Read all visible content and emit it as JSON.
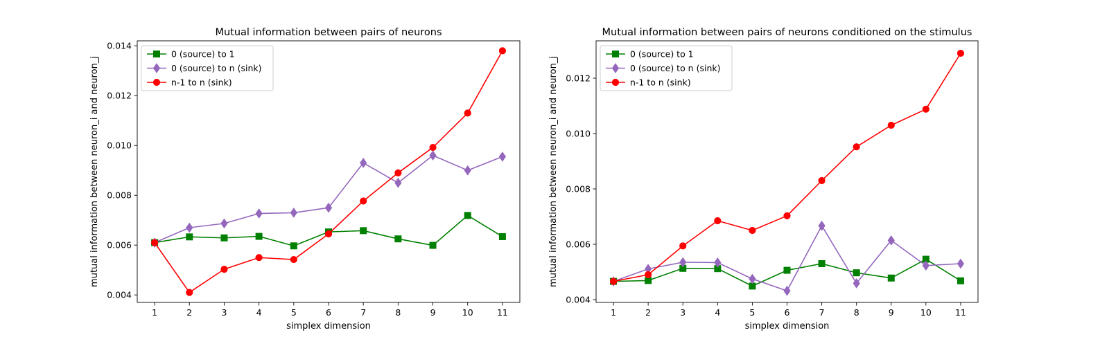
{
  "chart_data": [
    {
      "type": "line",
      "title": "Mutual information between pairs of neurons",
      "xlabel": "simplex dimension",
      "ylabel": "mutual information between neuron_i and neuron_j",
      "x": [
        1,
        2,
        3,
        4,
        5,
        6,
        7,
        8,
        9,
        10,
        11
      ],
      "xlim": [
        0.5,
        11.5
      ],
      "ylim": [
        0.0037,
        0.0142
      ],
      "yticks": [
        0.004,
        0.006,
        0.008,
        0.01,
        0.012,
        0.014
      ],
      "ytick_labels": [
        "0.004",
        "0.006",
        "0.008",
        "0.010",
        "0.012",
        "0.014"
      ],
      "grid": false,
      "legend_position": "top-left",
      "series": [
        {
          "name": "0 (source) to 1",
          "color": "#008000",
          "marker": "square",
          "values": [
            0.0061,
            0.00633,
            0.00629,
            0.00635,
            0.00597,
            0.00653,
            0.00658,
            0.00625,
            0.00599,
            0.00719,
            0.00634
          ]
        },
        {
          "name": "0 (source) to n (sink)",
          "color": "#9467bd",
          "marker": "diamond",
          "values": [
            0.0061,
            0.0067,
            0.00687,
            0.00727,
            0.0073,
            0.0075,
            0.0093,
            0.0085,
            0.0096,
            0.009,
            0.00955
          ]
        },
        {
          "name": "n-1 to n (sink)",
          "color": "#ff0000",
          "marker": "circle",
          "values": [
            0.0061,
            0.0041,
            0.00503,
            0.0055,
            0.00542,
            0.00645,
            0.00777,
            0.0089,
            0.00992,
            0.0113,
            0.0138
          ]
        }
      ]
    },
    {
      "type": "line",
      "title": "Mutual information between pairs of neurons conditioned on the stimulus",
      "xlabel": "simplex dimension",
      "ylabel": "mutual information between neuron_i and neuron_j",
      "x": [
        1,
        2,
        3,
        4,
        5,
        6,
        7,
        8,
        9,
        10,
        11
      ],
      "xlim": [
        0.5,
        11.5
      ],
      "ylim": [
        0.0039,
        0.01335
      ],
      "yticks": [
        0.004,
        0.006,
        0.008,
        0.01,
        0.012
      ],
      "ytick_labels": [
        "0.004",
        "0.006",
        "0.008",
        "0.010",
        "0.012"
      ],
      "grid": false,
      "legend_position": "top-left",
      "series": [
        {
          "name": "0 (source) to 1",
          "color": "#008000",
          "marker": "square",
          "values": [
            0.00466,
            0.00469,
            0.00513,
            0.00512,
            0.00449,
            0.00506,
            0.0053,
            0.00497,
            0.00478,
            0.00546,
            0.00468
          ]
        },
        {
          "name": "0 (source) to n (sink)",
          "color": "#9467bd",
          "marker": "diamond",
          "values": [
            0.00466,
            0.00511,
            0.00535,
            0.00534,
            0.00475,
            0.00432,
            0.00667,
            0.00459,
            0.00614,
            0.00523,
            0.0053
          ]
        },
        {
          "name": "n-1 to n (sink)",
          "color": "#ff0000",
          "marker": "circle",
          "values": [
            0.00466,
            0.0049,
            0.00594,
            0.00685,
            0.0065,
            0.00703,
            0.0083,
            0.00952,
            0.0103,
            0.01088,
            0.0129
          ]
        }
      ]
    }
  ]
}
